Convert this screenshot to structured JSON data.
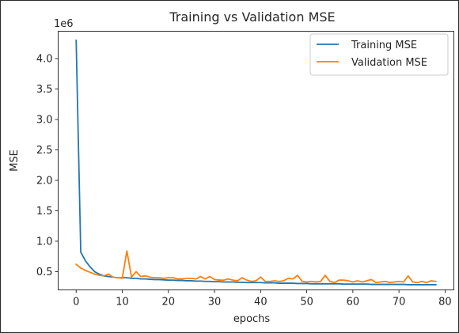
{
  "chart_data": {
    "type": "line",
    "title": "Training vs Validation MSE",
    "xlabel": "epochs",
    "ylabel": "MSE",
    "offset_label": "1e6",
    "xlim": [
      -3.9,
      81.9
    ],
    "ylim": [
      0.2,
      4.45
    ],
    "xticks": [
      0,
      10,
      20,
      30,
      40,
      50,
      60,
      70,
      80
    ],
    "yticks": [
      0.5,
      1.0,
      1.5,
      2.0,
      2.5,
      3.0,
      3.5,
      4.0
    ],
    "ytick_labels": [
      "0.5",
      "1.0",
      "1.5",
      "2.0",
      "2.5",
      "3.0",
      "3.5",
      "4.0"
    ],
    "legend_position": "top-right",
    "series": [
      {
        "name": "Training MSE",
        "color": "#1f77b4",
        "x": [
          0,
          1,
          2,
          3,
          4,
          5,
          6,
          7,
          8,
          9,
          10,
          11,
          12,
          13,
          14,
          15,
          16,
          17,
          18,
          19,
          20,
          21,
          22,
          23,
          24,
          25,
          26,
          27,
          28,
          29,
          30,
          31,
          32,
          33,
          34,
          35,
          36,
          37,
          38,
          39,
          40,
          41,
          42,
          43,
          44,
          45,
          46,
          47,
          48,
          49,
          50,
          51,
          52,
          53,
          54,
          55,
          56,
          57,
          58,
          59,
          60,
          61,
          62,
          63,
          64,
          65,
          66,
          67,
          68,
          69,
          70,
          71,
          72,
          73,
          74,
          75,
          76,
          77,
          78
        ],
        "values": [
          4.3,
          0.82,
          0.68,
          0.58,
          0.5,
          0.46,
          0.43,
          0.42,
          0.41,
          0.4,
          0.4,
          0.4,
          0.39,
          0.39,
          0.38,
          0.38,
          0.375,
          0.37,
          0.37,
          0.365,
          0.36,
          0.36,
          0.355,
          0.355,
          0.35,
          0.35,
          0.345,
          0.345,
          0.34,
          0.34,
          0.335,
          0.335,
          0.33,
          0.33,
          0.33,
          0.325,
          0.325,
          0.32,
          0.32,
          0.32,
          0.32,
          0.315,
          0.315,
          0.315,
          0.31,
          0.31,
          0.31,
          0.31,
          0.305,
          0.305,
          0.305,
          0.3,
          0.3,
          0.3,
          0.3,
          0.3,
          0.3,
          0.3,
          0.295,
          0.295,
          0.295,
          0.295,
          0.295,
          0.295,
          0.29,
          0.29,
          0.29,
          0.29,
          0.29,
          0.29,
          0.29,
          0.29,
          0.285,
          0.285,
          0.285,
          0.285,
          0.285,
          0.285,
          0.285
        ]
      },
      {
        "name": "Validation MSE",
        "color": "#ff7f0e",
        "x": [
          0,
          1,
          2,
          3,
          4,
          5,
          6,
          7,
          8,
          9,
          10,
          11,
          12,
          13,
          14,
          15,
          16,
          17,
          18,
          19,
          20,
          21,
          22,
          23,
          24,
          25,
          26,
          27,
          28,
          29,
          30,
          31,
          32,
          33,
          34,
          35,
          36,
          37,
          38,
          39,
          40,
          41,
          42,
          43,
          44,
          45,
          46,
          47,
          48,
          49,
          50,
          51,
          52,
          53,
          54,
          55,
          56,
          57,
          58,
          59,
          60,
          61,
          62,
          63,
          64,
          65,
          66,
          67,
          68,
          69,
          70,
          71,
          72,
          73,
          74,
          75,
          76,
          77,
          78
        ],
        "values": [
          0.62,
          0.56,
          0.52,
          0.49,
          0.46,
          0.44,
          0.43,
          0.46,
          0.41,
          0.4,
          0.39,
          0.84,
          0.41,
          0.5,
          0.42,
          0.43,
          0.41,
          0.4,
          0.4,
          0.39,
          0.4,
          0.4,
          0.38,
          0.38,
          0.39,
          0.39,
          0.38,
          0.42,
          0.38,
          0.42,
          0.37,
          0.36,
          0.36,
          0.38,
          0.36,
          0.35,
          0.4,
          0.36,
          0.34,
          0.35,
          0.41,
          0.34,
          0.34,
          0.35,
          0.34,
          0.35,
          0.39,
          0.38,
          0.44,
          0.34,
          0.33,
          0.34,
          0.33,
          0.34,
          0.44,
          0.34,
          0.32,
          0.36,
          0.36,
          0.35,
          0.33,
          0.35,
          0.33,
          0.35,
          0.37,
          0.32,
          0.33,
          0.34,
          0.32,
          0.33,
          0.34,
          0.33,
          0.43,
          0.33,
          0.32,
          0.34,
          0.32,
          0.35,
          0.34
        ]
      }
    ]
  }
}
